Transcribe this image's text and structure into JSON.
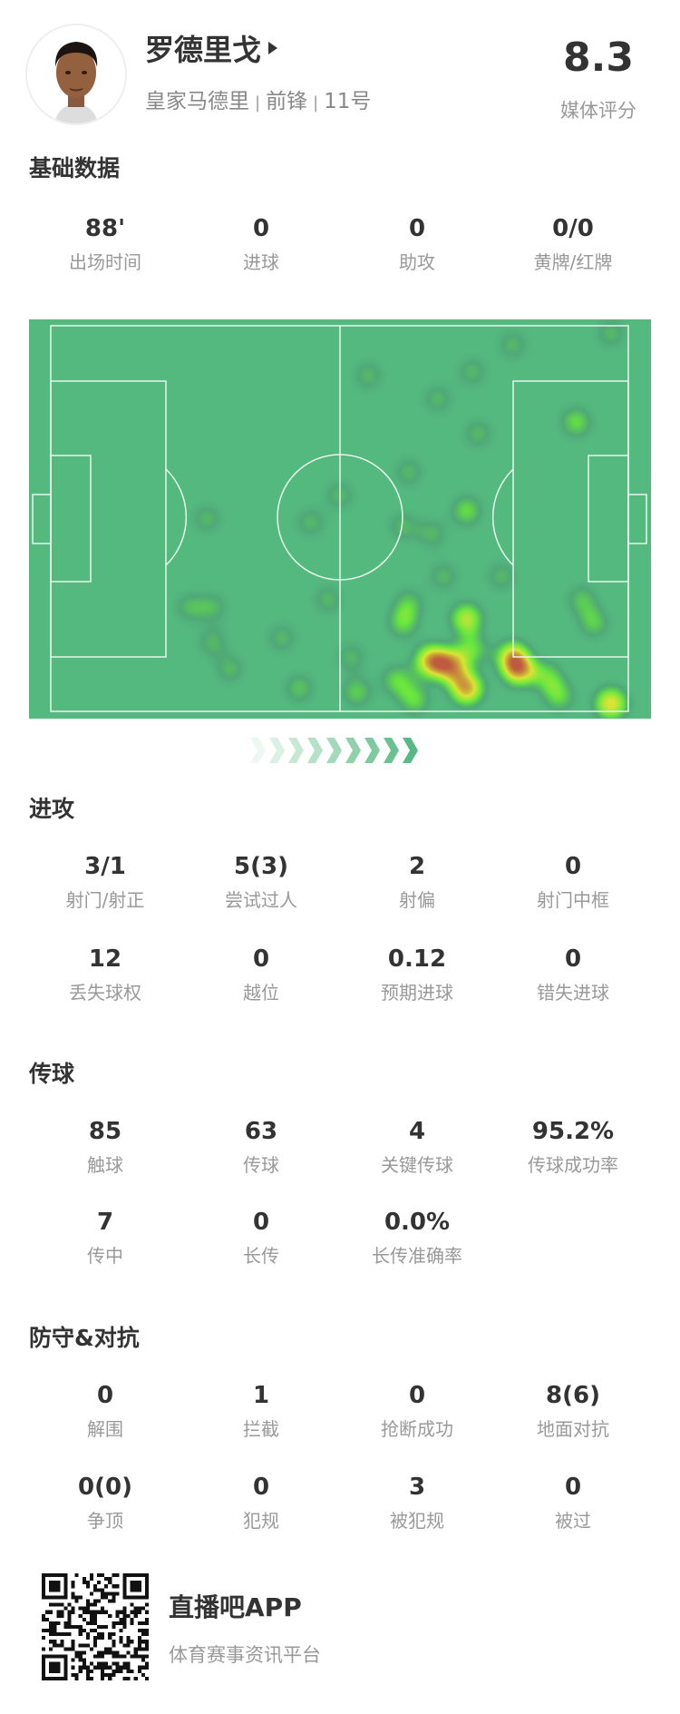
{
  "player": {
    "name": "罗德里戈",
    "team": "皇家马德里",
    "position": "前锋",
    "number": "11号",
    "rating": "8.3",
    "rating_label": "媒体评分"
  },
  "sections": {
    "basic": {
      "title": "基础数据",
      "rows": [
        [
          {
            "value": "88'",
            "label": "出场时间"
          },
          {
            "value": "0",
            "label": "进球"
          },
          {
            "value": "0",
            "label": "助攻"
          },
          {
            "value": "0/0",
            "label": "黄牌/红牌"
          }
        ]
      ]
    },
    "attack": {
      "title": "进攻",
      "rows": [
        [
          {
            "value": "3/1",
            "label": "射门/射正"
          },
          {
            "value": "5(3)",
            "label": "尝试过人"
          },
          {
            "value": "2",
            "label": "射偏"
          },
          {
            "value": "0",
            "label": "射门中框"
          }
        ],
        [
          {
            "value": "12",
            "label": "丢失球权"
          },
          {
            "value": "0",
            "label": "越位"
          },
          {
            "value": "0.12",
            "label": "预期进球"
          },
          {
            "value": "0",
            "label": "错失进球"
          }
        ]
      ]
    },
    "passing": {
      "title": "传球",
      "rows": [
        [
          {
            "value": "85",
            "label": "触球"
          },
          {
            "value": "63",
            "label": "传球"
          },
          {
            "value": "4",
            "label": "关键传球"
          },
          {
            "value": "95.2%",
            "label": "传球成功率"
          }
        ],
        [
          {
            "value": "7",
            "label": "传中"
          },
          {
            "value": "0",
            "label": "长传"
          },
          {
            "value": "0.0%",
            "label": "长传准确率"
          }
        ]
      ]
    },
    "defense": {
      "title": "防守&对抗",
      "rows": [
        [
          {
            "value": "0",
            "label": "解围"
          },
          {
            "value": "1",
            "label": "拦截"
          },
          {
            "value": "0",
            "label": "抢断成功"
          },
          {
            "value": "8(6)",
            "label": "地面对抗"
          }
        ],
        [
          {
            "value": "0(0)",
            "label": "争顶"
          },
          {
            "value": "0",
            "label": "犯规"
          },
          {
            "value": "3",
            "label": "被犯规"
          },
          {
            "value": "0",
            "label": "被过"
          }
        ]
      ]
    }
  },
  "heatmap": {
    "pitch_color": "#54b97f",
    "attack_direction": "right",
    "spots_pitch_pct": [
      [
        55,
        13,
        0.45
      ],
      [
        73,
        12,
        0.45
      ],
      [
        80,
        5,
        0.45
      ],
      [
        97,
        2,
        0.45
      ],
      [
        67,
        19,
        0.45
      ],
      [
        91,
        25,
        0.6
      ],
      [
        74,
        28,
        0.45
      ],
      [
        62,
        38,
        0.45
      ],
      [
        50,
        44,
        0.45
      ],
      [
        27,
        50,
        0.45
      ],
      [
        45,
        51,
        0.45
      ],
      [
        72,
        48,
        0.6
      ],
      [
        61,
        52,
        0.45
      ],
      [
        66,
        54,
        0.45
      ],
      [
        68,
        65,
        0.45
      ],
      [
        78,
        65,
        0.45
      ],
      [
        48,
        71,
        0.45
      ],
      [
        24,
        73,
        0.45
      ],
      [
        28,
        73,
        0.45
      ],
      [
        28,
        82,
        0.45
      ],
      [
        31,
        89,
        0.45
      ],
      [
        40,
        81,
        0.45
      ],
      [
        43,
        94,
        0.5
      ],
      [
        52,
        86,
        0.45
      ],
      [
        53,
        95,
        0.55
      ],
      [
        92,
        71,
        0.5
      ],
      [
        94,
        77,
        0.55
      ],
      [
        62,
        72,
        0.5
      ],
      [
        61,
        77,
        0.6
      ],
      [
        72,
        76,
        0.8
      ],
      [
        66,
        87,
        1
      ],
      [
        72,
        94,
        1
      ],
      [
        69,
        88,
        1
      ],
      [
        81,
        89,
        1
      ],
      [
        80,
        86,
        0.9
      ],
      [
        86,
        91,
        0.6
      ],
      [
        73,
        84,
        0.6
      ],
      [
        97,
        98,
        0.9
      ],
      [
        60,
        92,
        0.6
      ],
      [
        63,
        97,
        0.6
      ],
      [
        88,
        96,
        0.6
      ]
    ]
  },
  "footer": {
    "app_name": "直播吧APP",
    "slogan": "体育赛事资讯平台"
  }
}
